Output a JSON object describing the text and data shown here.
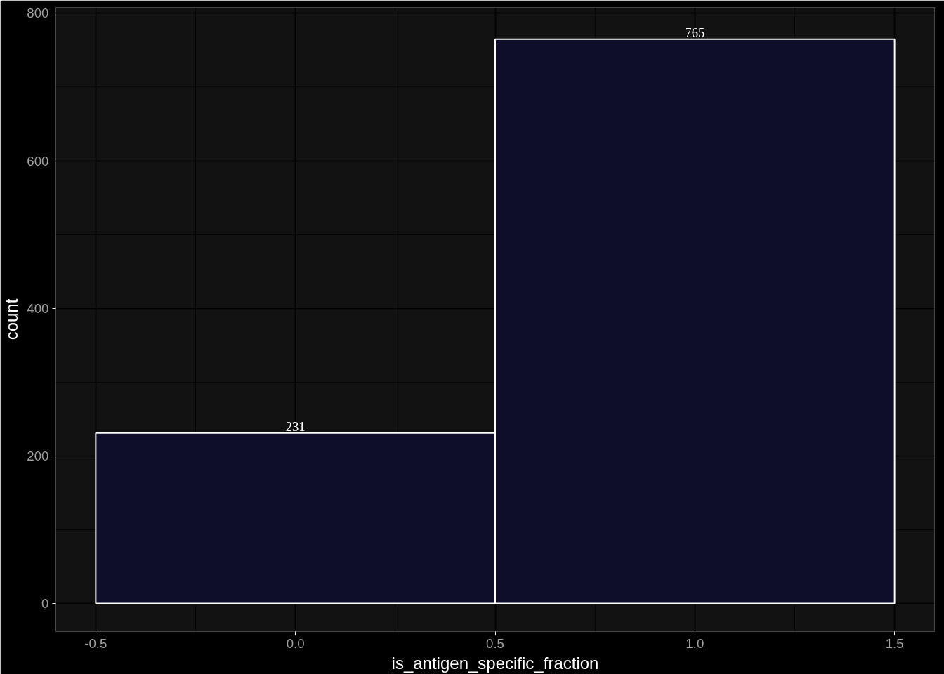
{
  "chart_data": {
    "type": "histogram",
    "xlabel": "is_antigen_specific_fraction",
    "ylabel": "count",
    "bins": [
      -0.5,
      0.5,
      1.5
    ],
    "values": [
      231,
      765
    ],
    "color": "#0e0e2a",
    "data_labels": true,
    "xlim": [
      -0.6,
      1.6
    ],
    "ylim": [
      -38,
      808
    ],
    "xticks": [
      -0.5,
      {
        "value": 0,
        "label": "0.0"
      },
      0.5,
      {
        "value": 1,
        "label": "1.0"
      },
      1.5
    ],
    "yticks": [
      0,
      200,
      400,
      600,
      800
    ],
    "grid": true
  }
}
